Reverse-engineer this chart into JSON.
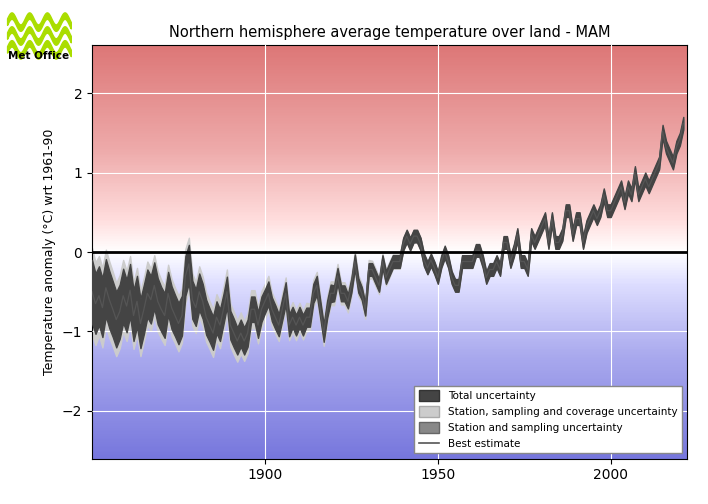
{
  "title": "Northern hemisphere average temperature over land - MAM",
  "ylabel": "Temperature anomaly (°C) wrt 1961-90",
  "xlim": [
    1850,
    2022
  ],
  "ylim": [
    -2.6,
    2.6
  ],
  "yticks": [
    -2,
    -1,
    0,
    1,
    2
  ],
  "xticks": [
    1900,
    1950,
    2000
  ],
  "grid_color": "#ffffff",
  "zero_line_color": "#000000",
  "bg_colors": [
    "#aaaaee",
    "#ccccff",
    "#eeeeff",
    "#ffffff",
    "#ffeeee",
    "#ffcccc",
    "#ee9999"
  ],
  "colors": {
    "total_unc": "#555555",
    "coverage_unc": "#cccccc",
    "sampling_unc": "#888888",
    "best": "#333333"
  },
  "years": [
    1850,
    1851,
    1852,
    1853,
    1854,
    1855,
    1856,
    1857,
    1858,
    1859,
    1860,
    1861,
    1862,
    1863,
    1864,
    1865,
    1866,
    1867,
    1868,
    1869,
    1870,
    1871,
    1872,
    1873,
    1874,
    1875,
    1876,
    1877,
    1878,
    1879,
    1880,
    1881,
    1882,
    1883,
    1884,
    1885,
    1886,
    1887,
    1888,
    1889,
    1890,
    1891,
    1892,
    1893,
    1894,
    1895,
    1896,
    1897,
    1898,
    1899,
    1900,
    1901,
    1902,
    1903,
    1904,
    1905,
    1906,
    1907,
    1908,
    1909,
    1910,
    1911,
    1912,
    1913,
    1914,
    1915,
    1916,
    1917,
    1918,
    1919,
    1920,
    1921,
    1922,
    1923,
    1924,
    1925,
    1926,
    1927,
    1928,
    1929,
    1930,
    1931,
    1932,
    1933,
    1934,
    1935,
    1936,
    1937,
    1938,
    1939,
    1940,
    1941,
    1942,
    1943,
    1944,
    1945,
    1946,
    1947,
    1948,
    1949,
    1950,
    1951,
    1952,
    1953,
    1954,
    1955,
    1956,
    1957,
    1958,
    1959,
    1960,
    1961,
    1962,
    1963,
    1964,
    1965,
    1966,
    1967,
    1968,
    1969,
    1970,
    1971,
    1972,
    1973,
    1974,
    1975,
    1976,
    1977,
    1978,
    1979,
    1980,
    1981,
    1982,
    1983,
    1984,
    1985,
    1986,
    1987,
    1988,
    1989,
    1990,
    1991,
    1992,
    1993,
    1994,
    1995,
    1996,
    1997,
    1998,
    1999,
    2000,
    2001,
    2002,
    2003,
    2004,
    2005,
    2006,
    2007,
    2008,
    2009,
    2010,
    2011,
    2012,
    2013,
    2014,
    2015,
    2016,
    2017,
    2018,
    2019,
    2020,
    2021
  ],
  "best_estimate": [
    -0.5,
    -0.65,
    -0.55,
    -0.7,
    -0.45,
    -0.6,
    -0.72,
    -0.85,
    -0.75,
    -0.55,
    -0.68,
    -0.48,
    -0.8,
    -0.62,
    -0.9,
    -0.72,
    -0.52,
    -0.6,
    -0.42,
    -0.62,
    -0.72,
    -0.8,
    -0.52,
    -0.7,
    -0.8,
    -0.9,
    -0.8,
    -0.3,
    -0.15,
    -0.6,
    -0.7,
    -0.5,
    -0.62,
    -0.82,
    -0.92,
    -1.02,
    -0.82,
    -0.92,
    -0.72,
    -0.5,
    -0.92,
    -1.02,
    -1.12,
    -1.02,
    -1.12,
    -1.02,
    -0.72,
    -0.72,
    -0.92,
    -0.72,
    -0.62,
    -0.52,
    -0.72,
    -0.82,
    -0.92,
    -0.72,
    -0.52,
    -0.92,
    -0.82,
    -0.92,
    -0.82,
    -0.92,
    -0.82,
    -0.82,
    -0.52,
    -0.42,
    -0.72,
    -1.02,
    -0.72,
    -0.52,
    -0.52,
    -0.3,
    -0.52,
    -0.52,
    -0.62,
    -0.42,
    -0.12,
    -0.42,
    -0.52,
    -0.72,
    -0.22,
    -0.22,
    -0.32,
    -0.42,
    -0.12,
    -0.32,
    -0.22,
    -0.12,
    -0.12,
    -0.12,
    0.1,
    0.2,
    0.1,
    0.2,
    0.2,
    0.1,
    -0.1,
    -0.2,
    -0.1,
    -0.2,
    -0.32,
    -0.12,
    0.0,
    -0.12,
    -0.32,
    -0.42,
    -0.42,
    -0.12,
    -0.12,
    -0.12,
    -0.12,
    0.02,
    0.02,
    -0.12,
    -0.32,
    -0.22,
    -0.22,
    -0.12,
    -0.22,
    0.12,
    0.12,
    -0.12,
    0.02,
    0.22,
    -0.12,
    -0.12,
    -0.22,
    0.22,
    0.12,
    0.22,
    0.32,
    0.42,
    0.12,
    0.42,
    0.12,
    0.12,
    0.22,
    0.52,
    0.52,
    0.22,
    0.42,
    0.42,
    0.12,
    0.32,
    0.42,
    0.52,
    0.42,
    0.52,
    0.72,
    0.52,
    0.52,
    0.62,
    0.72,
    0.82,
    0.62,
    0.82,
    0.72,
    1.0,
    0.72,
    0.82,
    0.92,
    0.82,
    0.92,
    1.02,
    1.12,
    1.52,
    1.32,
    1.22,
    1.12,
    1.32,
    1.42,
    1.62
  ],
  "cov_half": [
    0.55,
    0.52,
    0.5,
    0.5,
    0.48,
    0.48,
    0.47,
    0.46,
    0.46,
    0.45,
    0.44,
    0.43,
    0.42,
    0.42,
    0.41,
    0.4,
    0.4,
    0.39,
    0.38,
    0.38,
    0.37,
    0.37,
    0.36,
    0.36,
    0.35,
    0.35,
    0.34,
    0.34,
    0.33,
    0.33,
    0.32,
    0.32,
    0.31,
    0.31,
    0.3,
    0.3,
    0.29,
    0.29,
    0.28,
    0.28,
    0.27,
    0.27,
    0.26,
    0.26,
    0.25,
    0.25,
    0.24,
    0.24,
    0.23,
    0.23,
    0.22,
    0.22,
    0.21,
    0.21,
    0.2,
    0.2,
    0.2,
    0.19,
    0.19,
    0.19,
    0.18,
    0.18,
    0.18,
    0.17,
    0.17,
    0.17,
    0.16,
    0.16,
    0.16,
    0.15,
    0.15,
    0.15,
    0.14,
    0.14,
    0.14,
    0.13,
    0.13,
    0.13,
    0.12,
    0.12,
    0.12,
    0.11,
    0.11,
    0.11,
    0.1,
    0.1,
    0.1,
    0.09,
    0.09,
    0.09,
    0.08,
    0.08,
    0.08,
    0.07,
    0.07,
    0.07,
    0.07,
    0.07,
    0.07,
    0.07,
    0.07,
    0.07,
    0.07,
    0.07,
    0.07,
    0.07,
    0.07,
    0.07,
    0.07,
    0.07,
    0.07,
    0.07,
    0.07,
    0.07,
    0.07,
    0.07,
    0.07,
    0.07,
    0.07,
    0.07,
    0.07,
    0.07,
    0.07,
    0.07,
    0.07,
    0.07,
    0.07,
    0.07,
    0.07,
    0.07,
    0.07,
    0.07,
    0.07,
    0.07,
    0.07,
    0.07,
    0.07,
    0.07,
    0.07,
    0.07,
    0.07,
    0.07,
    0.07,
    0.07,
    0.07,
    0.07,
    0.07,
    0.07,
    0.07,
    0.07,
    0.07,
    0.07,
    0.07,
    0.07,
    0.07,
    0.07,
    0.07,
    0.07,
    0.07,
    0.07,
    0.07,
    0.07,
    0.07,
    0.07,
    0.07,
    0.07,
    0.07,
    0.07,
    0.07,
    0.07,
    0.07,
    0.07
  ],
  "samp_half": [
    0.3,
    0.28,
    0.27,
    0.27,
    0.26,
    0.26,
    0.25,
    0.25,
    0.24,
    0.24,
    0.23,
    0.23,
    0.22,
    0.22,
    0.21,
    0.21,
    0.2,
    0.2,
    0.19,
    0.19,
    0.18,
    0.18,
    0.17,
    0.17,
    0.16,
    0.16,
    0.15,
    0.15,
    0.14,
    0.14,
    0.13,
    0.13,
    0.12,
    0.12,
    0.11,
    0.11,
    0.1,
    0.1,
    0.09,
    0.09,
    0.08,
    0.08,
    0.07,
    0.07,
    0.07,
    0.07,
    0.07,
    0.07,
    0.07,
    0.07,
    0.07,
    0.07,
    0.07,
    0.07,
    0.07,
    0.07,
    0.07,
    0.07,
    0.07,
    0.07,
    0.07,
    0.07,
    0.07,
    0.07,
    0.07,
    0.07,
    0.07,
    0.07,
    0.07,
    0.07,
    0.07,
    0.07,
    0.07,
    0.07,
    0.07,
    0.07,
    0.07,
    0.07,
    0.07,
    0.07,
    0.07,
    0.07,
    0.07,
    0.07,
    0.07,
    0.07,
    0.07,
    0.07,
    0.07,
    0.07,
    0.07,
    0.07,
    0.07,
    0.07,
    0.07,
    0.07,
    0.07,
    0.07,
    0.07,
    0.07,
    0.06,
    0.06,
    0.06,
    0.06,
    0.06,
    0.06,
    0.06,
    0.06,
    0.06,
    0.06,
    0.06,
    0.06,
    0.06,
    0.06,
    0.06,
    0.06,
    0.06,
    0.06,
    0.06,
    0.06,
    0.06,
    0.06,
    0.06,
    0.06,
    0.06,
    0.06,
    0.06,
    0.06,
    0.06,
    0.06,
    0.06,
    0.06,
    0.06,
    0.06,
    0.06,
    0.06,
    0.06,
    0.06,
    0.06,
    0.06,
    0.06,
    0.06,
    0.06,
    0.06,
    0.06,
    0.06,
    0.06,
    0.06,
    0.06,
    0.06,
    0.06,
    0.06,
    0.06,
    0.06,
    0.06,
    0.06,
    0.06,
    0.06,
    0.06,
    0.06,
    0.06,
    0.06,
    0.06,
    0.06,
    0.06,
    0.06,
    0.06,
    0.06,
    0.06,
    0.06,
    0.06,
    0.06
  ],
  "total_half": [
    0.4,
    0.38,
    0.37,
    0.37,
    0.36,
    0.36,
    0.35,
    0.35,
    0.34,
    0.34,
    0.33,
    0.33,
    0.32,
    0.32,
    0.31,
    0.31,
    0.3,
    0.3,
    0.29,
    0.29,
    0.28,
    0.28,
    0.27,
    0.27,
    0.26,
    0.26,
    0.25,
    0.25,
    0.24,
    0.24,
    0.23,
    0.23,
    0.22,
    0.22,
    0.21,
    0.21,
    0.2,
    0.2,
    0.19,
    0.19,
    0.18,
    0.18,
    0.17,
    0.17,
    0.17,
    0.17,
    0.16,
    0.16,
    0.16,
    0.16,
    0.15,
    0.15,
    0.15,
    0.15,
    0.14,
    0.14,
    0.14,
    0.14,
    0.13,
    0.13,
    0.13,
    0.13,
    0.12,
    0.12,
    0.12,
    0.12,
    0.11,
    0.11,
    0.11,
    0.11,
    0.1,
    0.1,
    0.1,
    0.1,
    0.09,
    0.09,
    0.09,
    0.09,
    0.08,
    0.08,
    0.08,
    0.08,
    0.08,
    0.08,
    0.08,
    0.08,
    0.08,
    0.08,
    0.08,
    0.08,
    0.08,
    0.08,
    0.08,
    0.08,
    0.08,
    0.08,
    0.08,
    0.08,
    0.08,
    0.08,
    0.08,
    0.08,
    0.08,
    0.08,
    0.08,
    0.08,
    0.08,
    0.08,
    0.08,
    0.08,
    0.08,
    0.08,
    0.08,
    0.08,
    0.08,
    0.08,
    0.08,
    0.08,
    0.08,
    0.08,
    0.08,
    0.08,
    0.08,
    0.08,
    0.08,
    0.08,
    0.08,
    0.08,
    0.08,
    0.08,
    0.08,
    0.08,
    0.08,
    0.08,
    0.08,
    0.08,
    0.08,
    0.08,
    0.08,
    0.08,
    0.08,
    0.08,
    0.08,
    0.08,
    0.08,
    0.08,
    0.08,
    0.08,
    0.08,
    0.08,
    0.08,
    0.08,
    0.08,
    0.08,
    0.08,
    0.08,
    0.08,
    0.08,
    0.08,
    0.08,
    0.08,
    0.08,
    0.08,
    0.08,
    0.08,
    0.08,
    0.08,
    0.08,
    0.08,
    0.08,
    0.08,
    0.08
  ]
}
